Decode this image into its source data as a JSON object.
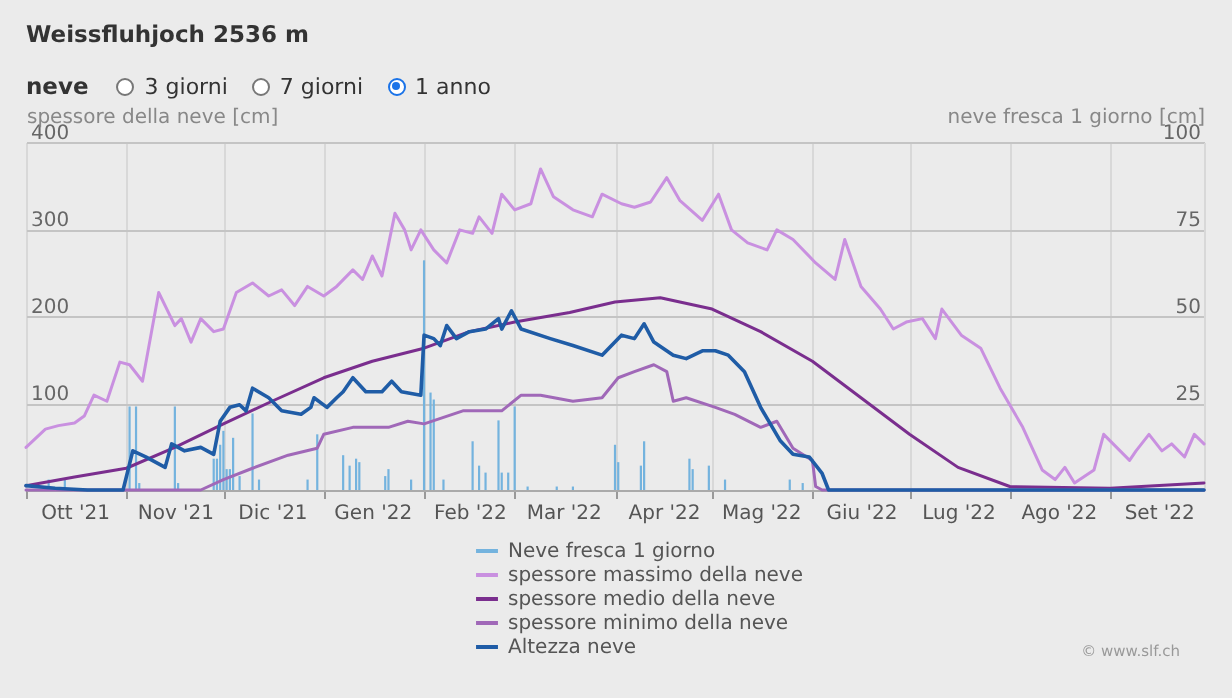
{
  "chart_data": {
    "type": "line",
    "title": "Weissfluhjoch 2536 m",
    "subtitle": "neve",
    "ylabel": "spessore della neve [cm]",
    "y2label": "neve fresca 1 giorno [cm]",
    "annotations": [
      "3 giorni",
      "7 giorni",
      "1 anno",
      "© www.slf.ch"
    ],
    "xlim": [
      "2021-10-01",
      "2022-09-30"
    ],
    "xticks": [
      {
        "value": "2021-10-01",
        "label": null
      },
      {
        "value": "2021-10-16",
        "label": "Ott '21"
      },
      {
        "value": "2021-11-01",
        "label": null
      },
      {
        "value": "2021-11-16",
        "label": "Nov '21"
      },
      {
        "value": "2021-12-01",
        "label": null
      },
      {
        "value": "2021-12-16",
        "label": "Dic '21"
      },
      {
        "value": "2022-01-01",
        "label": null
      },
      {
        "value": "2022-01-16",
        "label": "Gen '22"
      },
      {
        "value": "2022-02-01",
        "label": null
      },
      {
        "value": "2022-02-15",
        "label": "Feb '22"
      },
      {
        "value": "2022-03-01",
        "label": null
      },
      {
        "value": "2022-03-16",
        "label": "Mar '22"
      },
      {
        "value": "2022-04-01",
        "label": null
      },
      {
        "value": "2022-04-16",
        "label": "Apr '22"
      },
      {
        "value": "2022-05-01",
        "label": null
      },
      {
        "value": "2022-05-16",
        "label": "Mag '22"
      },
      {
        "value": "2022-06-01",
        "label": null
      },
      {
        "value": "2022-06-16",
        "label": "Giu '22"
      },
      {
        "value": "2022-07-01",
        "label": null
      },
      {
        "value": "2022-07-16",
        "label": "Lug '22"
      },
      {
        "value": "2022-08-01",
        "label": null
      },
      {
        "value": "2022-08-16",
        "label": "Ago '22"
      },
      {
        "value": "2022-09-01",
        "label": null
      },
      {
        "value": "2022-09-16",
        "label": "Set '22"
      }
    ],
    "ylim": [
      0,
      400
    ],
    "yticks": [
      100,
      200,
      300,
      400
    ],
    "y2lim": [
      0,
      100
    ],
    "y2ticks": [
      25,
      50,
      75,
      100
    ],
    "grid": true,
    "legend": "bottom",
    "marker": "none",
    "line_style": "solid",
    "series": [
      {
        "name": "Neve fresca 1 giorno",
        "color": "#74b3de",
        "type": "bar",
        "axis": "y2",
        "x": [
          "2021-10-08",
          "2021-10-13",
          "2021-11-02",
          "2021-11-04",
          "2021-11-05",
          "2021-11-16",
          "2021-11-17",
          "2021-11-28",
          "2021-11-29",
          "2021-11-30",
          "2021-12-01",
          "2021-12-02",
          "2021-12-03",
          "2021-12-04",
          "2021-12-06",
          "2021-12-10",
          "2021-12-12",
          "2021-12-27",
          "2021-12-30",
          "2022-01-07",
          "2022-01-09",
          "2022-01-11",
          "2022-01-12",
          "2022-01-20",
          "2022-01-21",
          "2022-01-28",
          "2022-02-01",
          "2022-02-03",
          "2022-02-04",
          "2022-02-07",
          "2022-02-16",
          "2022-02-18",
          "2022-02-20",
          "2022-02-24",
          "2022-02-25",
          "2022-02-27",
          "2022-03-01",
          "2022-03-05",
          "2022-03-14",
          "2022-03-19",
          "2022-04-01",
          "2022-04-02",
          "2022-04-09",
          "2022-04-10",
          "2022-04-24",
          "2022-04-25",
          "2022-04-30",
          "2022-05-05",
          "2022-05-25",
          "2022-05-29"
        ],
        "values": [
          3,
          3,
          24,
          24,
          2,
          24,
          2,
          9,
          9,
          13,
          17,
          6,
          6,
          15,
          4,
          22,
          3,
          3,
          16,
          10,
          7,
          9,
          8,
          4,
          6,
          3,
          66,
          28,
          26,
          3,
          14,
          7,
          5,
          20,
          5,
          5,
          24,
          1,
          1,
          1,
          13,
          8,
          7,
          14,
          9,
          6,
          7,
          3,
          3,
          2
        ]
      },
      {
        "name": "spessore massimo della neve",
        "color": "#c990e0",
        "x": [
          "2021-10-01",
          "2021-10-07",
          "2021-10-11",
          "2021-10-16",
          "2021-10-19",
          "2021-10-22",
          "2021-10-26",
          "2021-10-30",
          "2021-11-02",
          "2021-11-06",
          "2021-11-11",
          "2021-11-16",
          "2021-11-18",
          "2021-11-21",
          "2021-11-24",
          "2021-11-28",
          "2021-12-01",
          "2021-12-05",
          "2021-12-10",
          "2021-12-15",
          "2021-12-19",
          "2021-12-23",
          "2021-12-27",
          "2022-01-01",
          "2022-01-05",
          "2022-01-10",
          "2022-01-13",
          "2022-01-16",
          "2022-01-19",
          "2022-01-23",
          "2022-01-26",
          "2022-01-28",
          "2022-01-31",
          "2022-02-04",
          "2022-02-08",
          "2022-02-12",
          "2022-02-16",
          "2022-02-18",
          "2022-02-22",
          "2022-02-25",
          "2022-03-01",
          "2022-03-06",
          "2022-03-09",
          "2022-03-13",
          "2022-03-19",
          "2022-03-25",
          "2022-03-28",
          "2022-04-03",
          "2022-04-07",
          "2022-04-12",
          "2022-04-17",
          "2022-04-21",
          "2022-04-28",
          "2022-05-03",
          "2022-05-07",
          "2022-05-12",
          "2022-05-18",
          "2022-05-21",
          "2022-05-26",
          "2022-06-02",
          "2022-06-08",
          "2022-06-11",
          "2022-06-16",
          "2022-06-22",
          "2022-06-26",
          "2022-06-30",
          "2022-07-05",
          "2022-07-09",
          "2022-07-11",
          "2022-07-17",
          "2022-07-23",
          "2022-07-29",
          "2022-08-05",
          "2022-08-11",
          "2022-08-15",
          "2022-08-18",
          "2022-08-21",
          "2022-08-27",
          "2022-08-30",
          "2022-09-03",
          "2022-09-07",
          "2022-09-09",
          "2022-09-13",
          "2022-09-17",
          "2022-09-20",
          "2022-09-24",
          "2022-09-27",
          "2022-09-30"
        ],
        "values": [
          49,
          70,
          74,
          77,
          85,
          109,
          102,
          147,
          144,
          125,
          227,
          189,
          197,
          170,
          197,
          182,
          185,
          227,
          238,
          223,
          230,
          212,
          234,
          223,
          234,
          253,
          242,
          269,
          246,
          318,
          299,
          276,
          299,
          276,
          261,
          299,
          295,
          314,
          295,
          340,
          322,
          329,
          369,
          337,
          322,
          314,
          340,
          329,
          325,
          331,
          359,
          333,
          310,
          340,
          299,
          284,
          276,
          299,
          288,
          261,
          242,
          288,
          234,
          208,
          185,
          193,
          197,
          174,
          208,
          178,
          163,
          117,
          72,
          23,
          12,
          26,
          8,
          23,
          64,
          49,
          34,
          45,
          64,
          45,
          53,
          38,
          64,
          53
        ]
      },
      {
        "name": "spessore medio della neve",
        "color": "#7a2e8e",
        "x": [
          "2021-10-01",
          "2021-10-16",
          "2021-11-01",
          "2021-11-16",
          "2021-12-01",
          "2021-12-16",
          "2022-01-01",
          "2022-01-16",
          "2022-02-01",
          "2022-02-15",
          "2022-03-01",
          "2022-03-18",
          "2022-04-01",
          "2022-04-15",
          "2022-05-01",
          "2022-05-16",
          "2022-06-01",
          "2022-06-16",
          "2022-07-01",
          "2022-07-16",
          "2022-08-01",
          "2022-09-01",
          "2022-09-30"
        ],
        "values": [
          5,
          15,
          25,
          49,
          76,
          102,
          129,
          148,
          163,
          182,
          193,
          204,
          216,
          221,
          208,
          182,
          148,
          106,
          64,
          26,
          4,
          2,
          8
        ]
      },
      {
        "name": "spessore minimo della neve",
        "color": "#a068b8",
        "x": [
          "2021-10-01",
          "2021-11-24",
          "2021-12-01",
          "2021-12-10",
          "2021-12-21",
          "2021-12-30",
          "2022-01-01",
          "2022-01-10",
          "2022-01-21",
          "2022-01-27",
          "2022-02-01",
          "2022-02-13",
          "2022-02-25",
          "2022-03-03",
          "2022-03-09",
          "2022-03-19",
          "2022-03-28",
          "2022-04-02",
          "2022-04-07",
          "2022-04-13",
          "2022-04-17",
          "2022-04-19",
          "2022-04-23",
          "2022-05-02",
          "2022-05-08",
          "2022-05-16",
          "2022-05-21",
          "2022-05-26",
          "2022-06-01",
          "2022-06-02",
          "2022-06-04",
          "2022-09-30"
        ],
        "values": [
          0,
          0,
          12,
          25,
          40,
          48,
          64,
          72,
          72,
          79,
          76,
          91,
          91,
          109,
          109,
          102,
          106,
          129,
          136,
          144,
          136,
          102,
          106,
          95,
          87,
          72,
          79,
          48,
          34,
          4,
          0,
          0
        ]
      },
      {
        "name": "Altezza neve",
        "color": "#1f5ca6",
        "x": [
          "2021-10-01",
          "2021-10-10",
          "2021-10-20",
          "2021-10-31",
          "2021-11-03",
          "2021-11-07",
          "2021-11-13",
          "2021-11-15",
          "2021-11-19",
          "2021-11-24",
          "2021-11-28",
          "2021-11-30",
          "2021-12-03",
          "2021-12-06",
          "2021-12-08",
          "2021-12-10",
          "2021-12-15",
          "2021-12-19",
          "2021-12-25",
          "2021-12-28",
          "2021-12-29",
          "2022-01-02",
          "2022-01-05",
          "2022-01-07",
          "2022-01-10",
          "2022-01-14",
          "2022-01-19",
          "2022-01-22",
          "2022-01-25",
          "2022-01-31",
          "2022-02-01",
          "2022-02-04",
          "2022-02-06",
          "2022-02-08",
          "2022-02-11",
          "2022-02-15",
          "2022-02-20",
          "2022-02-24",
          "2022-02-25",
          "2022-02-28",
          "2022-03-03",
          "2022-03-12",
          "2022-03-19",
          "2022-03-28",
          "2022-04-03",
          "2022-04-07",
          "2022-04-10",
          "2022-04-13",
          "2022-04-19",
          "2022-04-23",
          "2022-04-28",
          "2022-05-02",
          "2022-05-06",
          "2022-05-11",
          "2022-05-16",
          "2022-05-22",
          "2022-05-26",
          "2022-05-31",
          "2022-06-04",
          "2022-06-06",
          "2022-09-30"
        ],
        "values": [
          5,
          2,
          0,
          0,
          45,
          38,
          26,
          53,
          45,
          49,
          41,
          79,
          95,
          98,
          91,
          117,
          106,
          91,
          87,
          95,
          106,
          95,
          106,
          113,
          129,
          113,
          113,
          125,
          113,
          109,
          178,
          174,
          166,
          189,
          174,
          182,
          185,
          197,
          185,
          206,
          185,
          174,
          166,
          155,
          178,
          174,
          191,
          170,
          155,
          151,
          160,
          160,
          155,
          136,
          95,
          57,
          41,
          38,
          19,
          0,
          0
        ]
      }
    ]
  }
}
